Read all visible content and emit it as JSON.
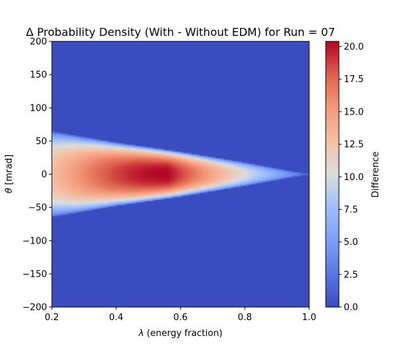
{
  "chart_data": {
    "type": "heatmap",
    "title": "Δ Probability Density (With - Without EDM) for Run = 07",
    "xlabel_symbol": "λ",
    "xlabel_text": " (energy fraction)",
    "ylabel_symbol": "θ",
    "ylabel_text": " [mrad]",
    "colorbar_label": "Difference",
    "colormap": "coolwarm",
    "xlim": [
      0.2,
      1.0
    ],
    "ylim": [
      -200,
      200
    ],
    "clim": [
      0.0,
      20.4
    ],
    "x_ticks": [
      "0.2",
      "0.4",
      "0.6",
      "0.8",
      "1.0"
    ],
    "y_ticks": [
      "200",
      "150",
      "100",
      "50",
      "0",
      "−50",
      "−100",
      "−150",
      "−200"
    ],
    "colorbar_ticks": [
      "20.0",
      "17.5",
      "15.0",
      "12.5",
      "10.0",
      "7.5",
      "5.0",
      "2.5",
      "0.0"
    ],
    "grid": false,
    "field": {
      "description_values": "difference as function of lambda (x) and theta (y); cone-shaped positive region narrowing toward lambda = 1.0",
      "cone_half_width_mrad": [
        [
          0.2,
          65
        ],
        [
          0.4,
          48
        ],
        [
          0.6,
          34
        ],
        [
          0.8,
          18
        ],
        [
          1.0,
          0
        ]
      ],
      "peak_lambda": 0.56,
      "peak_value": 20.4,
      "value_at_lambda_0_2_center": 12.8,
      "value_at_lambda_0_9_center": 6.0
    }
  }
}
